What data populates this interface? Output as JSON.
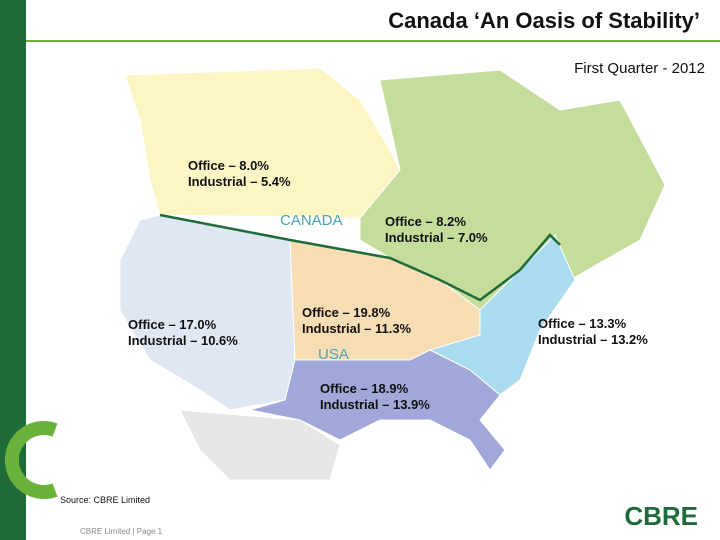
{
  "header": {
    "title": "Canada ‘An Oasis of Stability’",
    "subtitle": "First Quarter - 2012"
  },
  "map": {
    "country_labels": [
      "CANADA",
      "USA"
    ],
    "regions": [
      {
        "office": "Office – 8.0%",
        "industrial": "Industrial – 5.4%"
      },
      {
        "office": "Office – 8.2%",
        "industrial": "Industrial – 7.0%"
      },
      {
        "office": "Office – 17.0%",
        "industrial": "Industrial – 10.6%"
      },
      {
        "office": "Office – 19.8%",
        "industrial": "Industrial – 11.3%"
      },
      {
        "office": "Office – 13.3%",
        "industrial": "Industrial – 13.2%"
      },
      {
        "office": "Office – 18.9%",
        "industrial": "Industrial – 13.9%"
      }
    ]
  },
  "footer": {
    "source": "Source: CBRE Limited",
    "page": "CBRE Limited | Page 1",
    "logo": "CBRE"
  }
}
